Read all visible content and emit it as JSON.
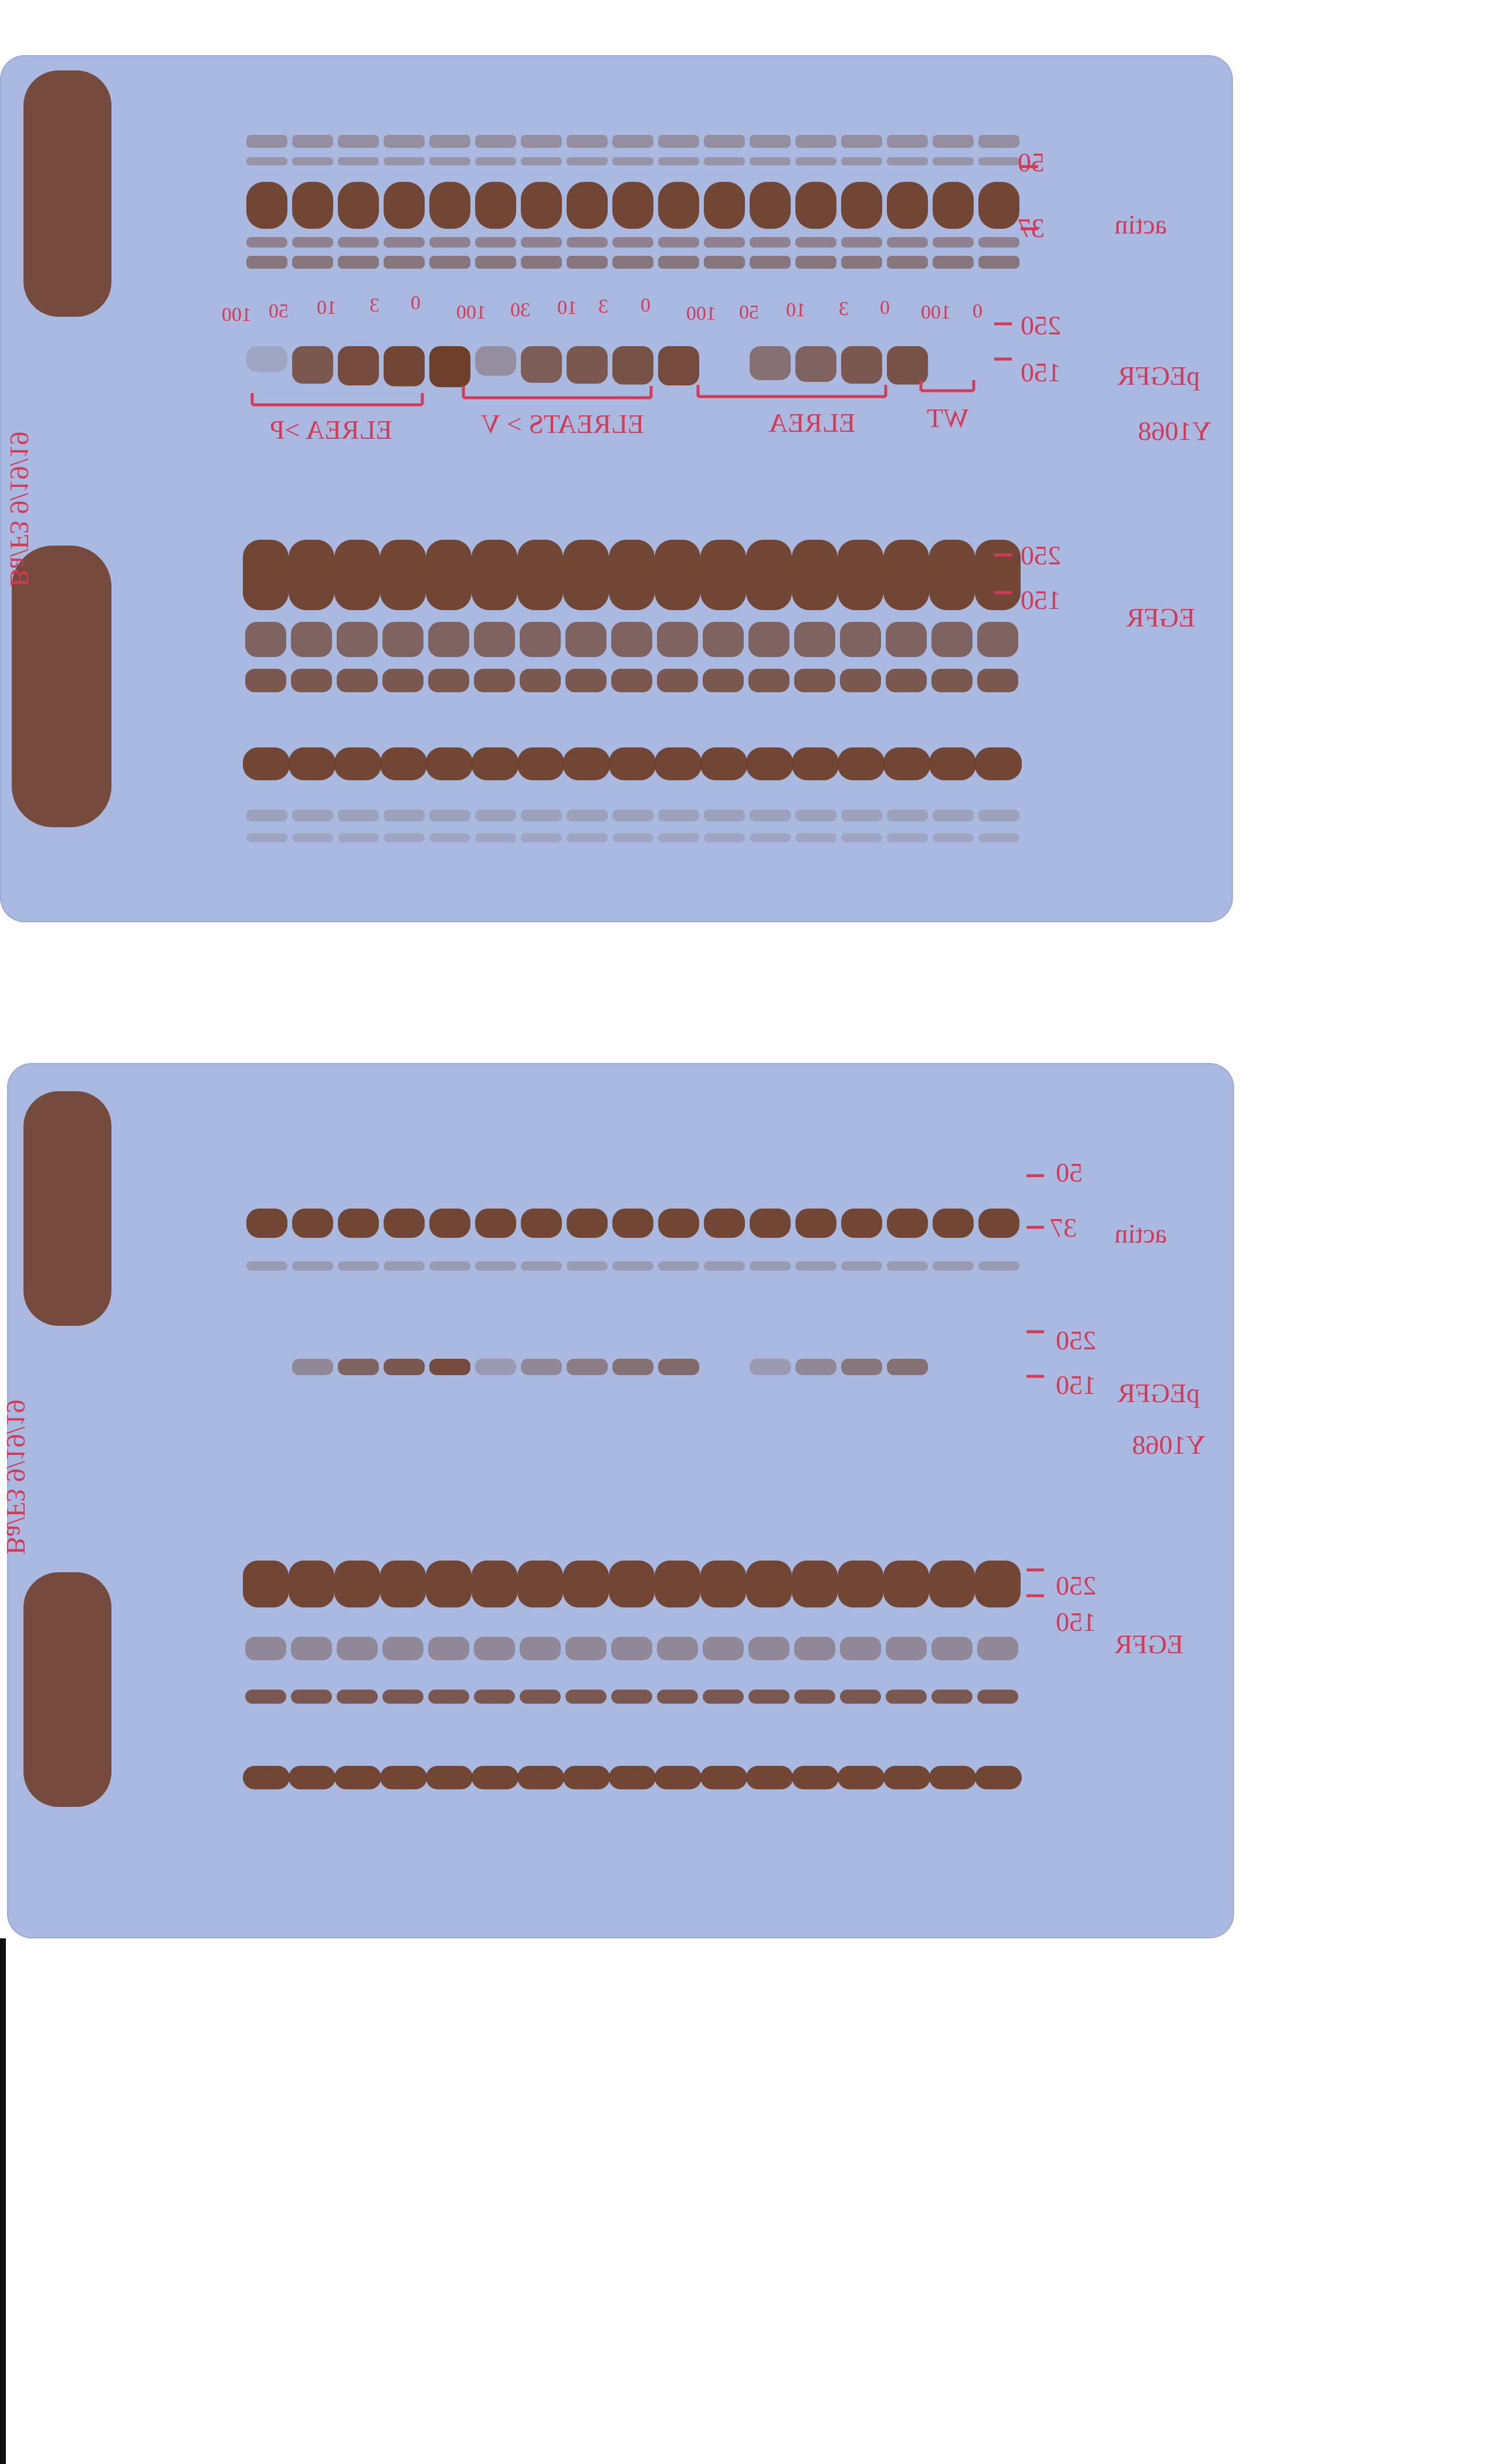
{
  "top_blot": {
    "actin_label": "actin",
    "actin_markers": [
      "50",
      "37"
    ],
    "pegfr_label": "pEGFR",
    "pegfr_sub": "Y1068",
    "pegfr_markers": [
      "250",
      "150"
    ],
    "egfr_label": "EGFR",
    "egfr_markers": [
      "250",
      "150"
    ],
    "dose_labels": [
      "100",
      "50",
      "10",
      "3",
      "0",
      "100",
      "30",
      "10",
      "3",
      "0",
      "100",
      "50",
      "10",
      "3",
      "0",
      "100",
      "0"
    ],
    "groups": [
      "ELREA >P",
      "ELREATS > V",
      "ELREA",
      "WT"
    ],
    "side_note": "Ba/F3 9/19/19"
  },
  "bottom_blot": {
    "actin_label": "actin",
    "actin_markers": [
      "50",
      "37"
    ],
    "pegfr_label": "pEGFR",
    "pegfr_sub": "Y1068",
    "pegfr_markers": [
      "250",
      "150"
    ],
    "egfr_label": "EGFR",
    "egfr_markers": [
      "250",
      "150"
    ],
    "side_note": "Ba/F3 9/19/19"
  },
  "colors": {
    "film": "#a9b9df",
    "band": "#6e3f2b",
    "ink": "#d33a57"
  }
}
